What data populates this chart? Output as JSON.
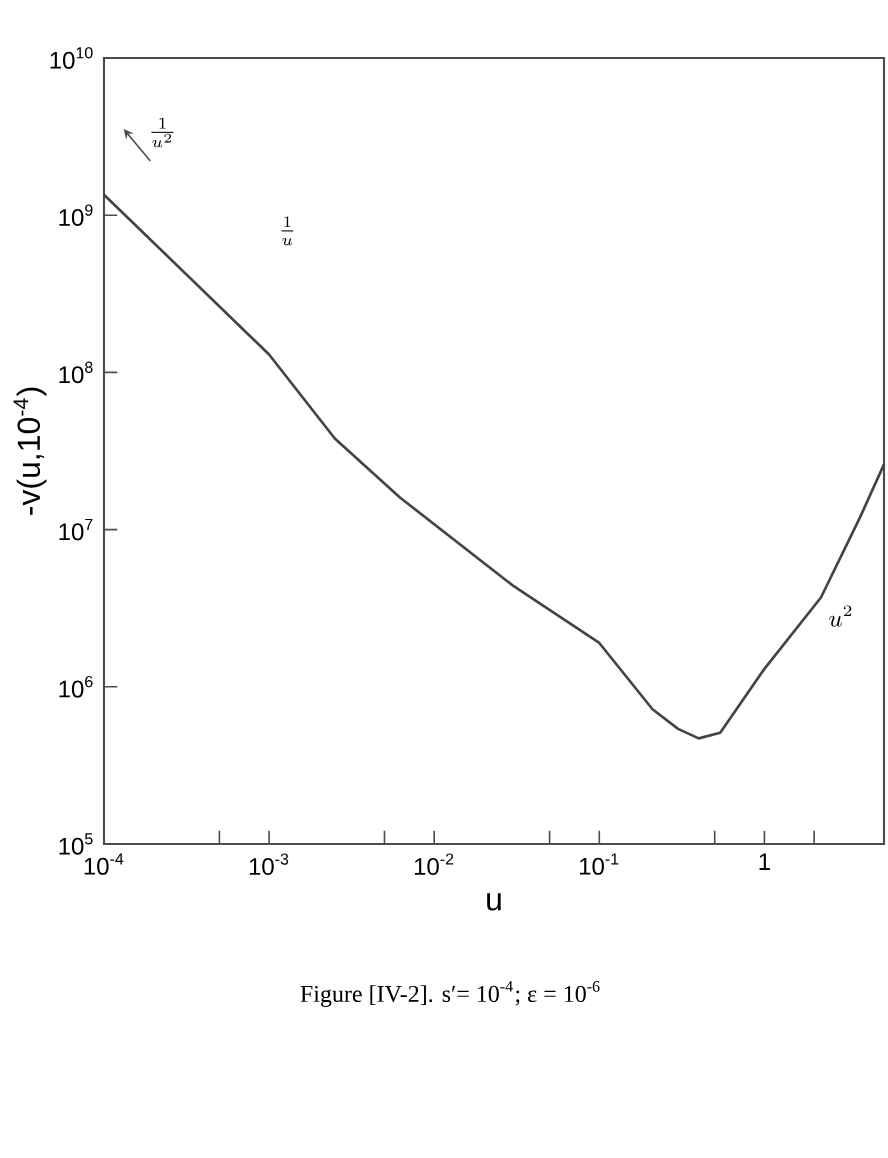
{
  "chart_data": {
    "type": "line",
    "xlabel": "u",
    "ylabel": "-v(u,10$^{-4}$)",
    "log": "xy",
    "grid": false,
    "marker": "none",
    "line_style": "solid",
    "x": [
      0.0001,
      0.001,
      0.0025,
      0.0062,
      0.03,
      0.1,
      0.21,
      0.3,
      0.4,
      0.54,
      1.0,
      2.2,
      3.8,
      5.3
    ],
    "series": [
      {
        "color": "#444444",
        "values": [
          1350000000,
          130000000,
          38000000,
          16000000,
          4400000,
          1900000,
          720000,
          540000,
          470000,
          510000,
          1300000,
          3700000,
          12000000,
          26000000
        ]
      }
    ],
    "xlim": [
      0.0001,
      5.3
    ],
    "ylim": [
      100000,
      10000000000
    ],
    "xticks": [
      {
        "value": 0.0001,
        "label": "10$^{-4}$"
      },
      {
        "value": 0.0005,
        "label": null
      },
      {
        "value": 0.001,
        "label": "10$^{-3}$"
      },
      {
        "value": 0.005,
        "label": null
      },
      {
        "value": 0.01,
        "label": "10$^{-2}$"
      },
      {
        "value": 0.05,
        "label": null
      },
      {
        "value": 0.1,
        "label": "10$^{-1}$"
      },
      {
        "value": 0.5,
        "label": null
      },
      1,
      {
        "value": 2,
        "label": null
      }
    ],
    "yticks": [
      {
        "value": 100000,
        "label": "10$^{5}$"
      },
      {
        "value": 1000000,
        "label": "10$^{6}$"
      },
      {
        "value": 10000000,
        "label": "10$^{7}$"
      },
      {
        "value": 100000000,
        "label": "10$^{8}$"
      },
      {
        "value": 1000000000,
        "label": "10$^{9}$"
      },
      {
        "value": 10000000000,
        "label": "10$^{10}$"
      }
    ],
    "annotations": [
      "\\frac{1}{u^{2}}",
      "\\frac{1}{u}",
      "u^{2}",
      "Figure [IV-2].    s′= 10$^{-4}$;  ε = 10$^{-6}$"
    ]
  }
}
